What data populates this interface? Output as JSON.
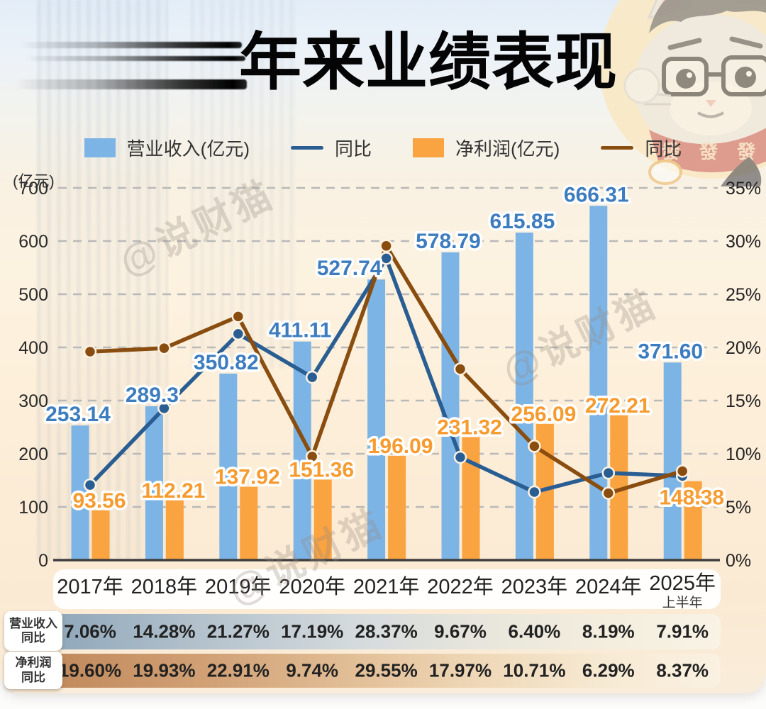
{
  "title": {
    "text": "年来业绩表现"
  },
  "legend": [
    {
      "type": "bar",
      "label": "营业收入(亿元)",
      "color": "#7db4e6"
    },
    {
      "type": "line",
      "label": "同比",
      "color": "#2a5e93"
    },
    {
      "type": "bar",
      "label": "净利润(亿元)",
      "color": "#f9a341"
    },
    {
      "type": "line",
      "label": "同比",
      "color": "#8a4d10"
    }
  ],
  "watermark": {
    "text": "@说财猫"
  },
  "mascot": {
    "bandana_text": "發 發 發"
  },
  "chart_data": {
    "type": "bar+line",
    "categories": [
      "2017年",
      "2018年",
      "2019年",
      "2020年",
      "2021年",
      "2022年",
      "2023年",
      "2024年",
      "2025年"
    ],
    "category_note": {
      "index": 8,
      "text": "上半年"
    },
    "left_axis": {
      "label": "(亿元)",
      "min": 0,
      "max": 700,
      "step": 100,
      "ticks": [
        0,
        100,
        200,
        300,
        400,
        500,
        600,
        700
      ]
    },
    "right_axis": {
      "unit": "%",
      "min": 0,
      "max": 35,
      "step": 5,
      "ticks": [
        0,
        5,
        10,
        15,
        20,
        25,
        30,
        35
      ]
    },
    "grid": "dashed-horizontal",
    "legend_position": "top",
    "series": [
      {
        "name": "营业收入(亿元)",
        "type": "bar",
        "axis": "left",
        "color": "#7db4e6",
        "label_color": "#3d7cbe",
        "values": [
          253.14,
          289.3,
          350.82,
          411.11,
          527.74,
          578.79,
          615.85,
          666.31,
          371.6
        ],
        "labels": [
          "253.14",
          "289.3",
          "350.82",
          "411.11",
          "527.74",
          "578.79",
          "615.85",
          "666.31",
          "371.60"
        ]
      },
      {
        "name": "营业收入同比",
        "type": "line",
        "axis": "right",
        "color": "#2a5e93",
        "values": [
          7.06,
          14.28,
          21.27,
          17.19,
          28.37,
          9.67,
          6.4,
          8.19,
          7.91
        ]
      },
      {
        "name": "净利润(亿元)",
        "type": "bar",
        "axis": "left",
        "color": "#f9a341",
        "label_color": "#f79b2f",
        "values": [
          93.56,
          112.21,
          137.92,
          151.36,
          196.09,
          231.32,
          256.09,
          272.21,
          148.38
        ],
        "labels": [
          "93.56",
          "112.21",
          "137.92",
          "151.36",
          "196.09",
          "231.32",
          "256.09",
          "272.21",
          "148.38"
        ]
      },
      {
        "name": "净利润同比",
        "type": "line",
        "axis": "right",
        "color": "#8a4d10",
        "values": [
          19.6,
          19.93,
          22.91,
          9.74,
          29.55,
          17.97,
          10.71,
          6.29,
          8.37
        ]
      }
    ]
  },
  "table": {
    "rows": [
      {
        "label_lines": [
          "营业收入",
          "同比"
        ],
        "values": [
          "7.06%",
          "14.28%",
          "21.27%",
          "17.19%",
          "28.37%",
          "9.67%",
          "6.40%",
          "8.19%",
          "7.91%"
        ]
      },
      {
        "label_lines": [
          "净利润",
          "同比"
        ],
        "values": [
          "19.60%",
          "19.93%",
          "22.91%",
          "9.74%",
          "29.55%",
          "17.97%",
          "10.71%",
          "6.29%",
          "8.37%"
        ]
      }
    ]
  }
}
